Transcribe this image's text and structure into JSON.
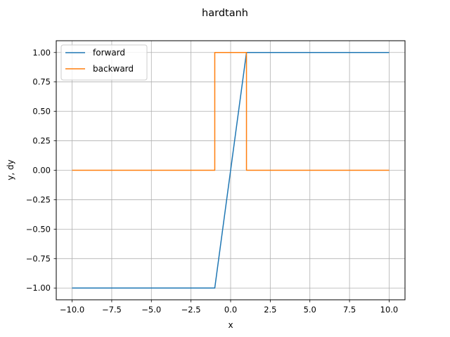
{
  "chart_data": {
    "type": "line",
    "title": "hardtanh",
    "xlabel": "x",
    "ylabel": "y, dy",
    "xlim": [
      -11,
      11
    ],
    "ylim": [
      -1.1,
      1.1
    ],
    "x_ticks": [
      -10.0,
      -7.5,
      -5.0,
      -2.5,
      0.0,
      2.5,
      5.0,
      7.5,
      10.0
    ],
    "x_tick_labels": [
      "−10.0",
      "−7.5",
      "−5.0",
      "−2.5",
      "0.0",
      "2.5",
      "5.0",
      "7.5",
      "10.0"
    ],
    "y_ticks": [
      -1.0,
      -0.75,
      -0.5,
      -0.25,
      0.0,
      0.25,
      0.5,
      0.75,
      1.0
    ],
    "y_tick_labels": [
      "−1.00",
      "−0.75",
      "−0.50",
      "−0.25",
      "0.00",
      "0.25",
      "0.50",
      "0.75",
      "1.00"
    ],
    "grid": true,
    "legend_position": "top-left",
    "series": [
      {
        "name": "forward",
        "color": "#1f77b4",
        "x": [
          -10,
          -1,
          1,
          10
        ],
        "y": [
          -1,
          -1,
          1,
          1
        ]
      },
      {
        "name": "backward",
        "color": "#ff7f0e",
        "x": [
          -10,
          -1,
          -1,
          1,
          1,
          10
        ],
        "y": [
          0,
          0,
          1,
          1,
          0,
          0
        ]
      }
    ]
  }
}
